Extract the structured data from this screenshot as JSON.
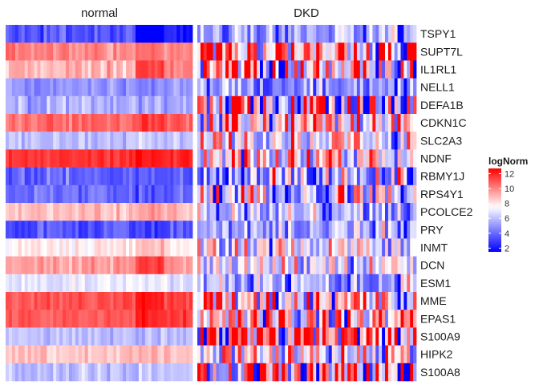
{
  "chart_data": {
    "type": "heatmap",
    "panels": [
      "normal",
      "DKD"
    ],
    "genes": [
      "TSPY1",
      "SUPT7L",
      "IL1RL1",
      "NELL1",
      "DEFA1B",
      "CDKN1C",
      "SLC2A3",
      "NDNF",
      "RBMY1J",
      "RPS4Y1",
      "PCOLCE2",
      "PRY",
      "INMT",
      "DCN",
      "ESM1",
      "MME",
      "EPAS1",
      "S100A9",
      "HIPK2",
      "S100A8"
    ],
    "legend": {
      "title": "logNorm",
      "ticks": [
        "12",
        "10",
        "8",
        "6",
        "4",
        "2"
      ],
      "range": [
        1.5,
        12.7
      ],
      "colors": [
        "#0000ff",
        "#ffffff",
        "#ff0000"
      ],
      "midpoint": 7.5
    },
    "panel_columns": {
      "normal": 59,
      "DKD": 70
    },
    "row_levels": {
      "TSPY1": {
        "normal": [
          3.5,
          0.0,
          2.2,
          1.0
        ],
        "DKD": [
          4.8,
          6.2,
          5.0,
          2.5
        ]
      },
      "SUPT7L": {
        "normal": [
          10.0,
          10.5,
          10.0,
          0.8
        ],
        "DKD": [
          9.8,
          10.0,
          10.0,
          7.5
        ]
      },
      "IL1RL1": {
        "normal": [
          9.0,
          11.5,
          10.0,
          1.0
        ],
        "DKD": [
          8.0,
          8.5,
          8.3,
          9.5
        ]
      },
      "NELL1": {
        "normal": [
          5.0,
          5.0,
          5.0,
          1.0
        ],
        "DKD": [
          5.0,
          5.5,
          5.0,
          2.5
        ]
      },
      "DEFA1B": {
        "normal": [
          5.5,
          5.5,
          5.5,
          1.2
        ],
        "DKD": [
          6.0,
          6.0,
          5.5,
          10.0
        ]
      },
      "CDKN1C": {
        "normal": [
          10.5,
          11.5,
          11.0,
          0.8
        ],
        "DKD": [
          8.3,
          8.5,
          8.3,
          5.5
        ]
      },
      "SLC2A3": {
        "normal": [
          6.0,
          6.0,
          6.0,
          0.8
        ],
        "DKD": [
          7.5,
          8.0,
          7.5,
          5.0
        ]
      },
      "NDNF": {
        "normal": [
          11.5,
          12.3,
          12.0,
          0.6
        ],
        "DKD": [
          7.5,
          8.0,
          7.5,
          5.0
        ]
      },
      "RBMY1J": {
        "normal": [
          4.0,
          3.5,
          3.8,
          1.0
        ],
        "DKD": [
          5.5,
          6.0,
          5.5,
          5.0
        ]
      },
      "RPS4Y1": {
        "normal": [
          4.0,
          3.5,
          3.8,
          1.0
        ],
        "DKD": [
          6.5,
          7.0,
          6.5,
          6.0
        ]
      },
      "PCOLCE2": {
        "normal": [
          8.8,
          9.5,
          9.0,
          0.8
        ],
        "DKD": [
          6.0,
          6.0,
          5.5,
          3.0
        ]
      },
      "PRY": {
        "normal": [
          3.5,
          3.0,
          3.5,
          1.0
        ],
        "DKD": [
          5.0,
          6.0,
          5.5,
          2.5
        ]
      },
      "INMT": {
        "normal": [
          7.8,
          9.0,
          8.0,
          0.8
        ],
        "DKD": [
          6.5,
          7.0,
          6.8,
          4.0
        ]
      },
      "DCN": {
        "normal": [
          9.5,
          11.5,
          10.0,
          0.8
        ],
        "DKD": [
          7.0,
          7.2,
          7.0,
          3.5
        ]
      },
      "ESM1": {
        "normal": [
          7.0,
          7.0,
          6.5,
          0.8
        ],
        "DKD": [
          5.5,
          5.5,
          5.5,
          3.5
        ]
      },
      "MME": {
        "normal": [
          11.0,
          12.3,
          11.5,
          0.6
        ],
        "DKD": [
          8.5,
          8.5,
          8.5,
          6.0
        ]
      },
      "EPAS1": {
        "normal": [
          11.0,
          12.0,
          11.5,
          0.6
        ],
        "DKD": [
          8.0,
          8.5,
          8.3,
          6.0
        ]
      },
      "S100A9": {
        "normal": [
          6.0,
          6.0,
          6.0,
          0.8
        ],
        "DKD": [
          9.0,
          10.0,
          9.5,
          11.0
        ]
      },
      "HIPK2": {
        "normal": [
          8.8,
          9.0,
          8.8,
          0.6
        ],
        "DKD": [
          7.0,
          7.5,
          7.3,
          5.0
        ]
      },
      "S100A8": {
        "normal": [
          6.0,
          6.0,
          6.0,
          0.8
        ],
        "DKD": [
          8.5,
          9.0,
          9.0,
          10.5
        ]
      }
    }
  }
}
